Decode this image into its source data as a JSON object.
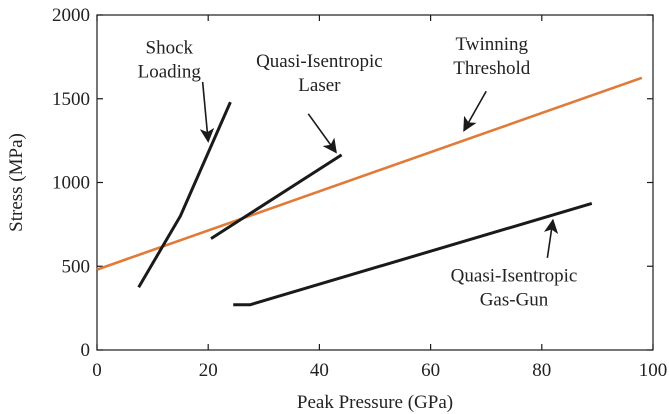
{
  "chart_data": {
    "type": "line",
    "xlabel": "Peak Pressure (GPa)",
    "ylabel": "Stress (MPa)",
    "xlim": [
      0,
      100
    ],
    "ylim": [
      0,
      2000
    ],
    "xticks": [
      0,
      20,
      40,
      60,
      80,
      100
    ],
    "yticks": [
      0,
      500,
      1000,
      1500,
      2000
    ],
    "grid": false,
    "series": [
      {
        "id": "twinning",
        "color": "#E07B39",
        "points": [
          [
            0,
            480
          ],
          [
            98,
            1625
          ]
        ]
      },
      {
        "id": "shock",
        "color": "#1a1a1a",
        "points": [
          [
            7.5,
            375
          ],
          [
            15,
            800
          ],
          [
            24,
            1480
          ]
        ]
      },
      {
        "id": "laser",
        "color": "#1a1a1a",
        "points": [
          [
            20.5,
            665
          ],
          [
            44,
            1165
          ]
        ]
      },
      {
        "id": "gasgun",
        "color": "#1a1a1a",
        "points": [
          [
            24.5,
            270
          ],
          [
            27.5,
            270
          ],
          [
            89,
            875
          ]
        ]
      }
    ],
    "annotations": [
      {
        "id": "shock-label",
        "lines": [
          "Shock",
          "Loading"
        ],
        "text_pos": [
          13,
          1770
        ],
        "arrow_from": [
          19,
          1600
        ],
        "arrow_to": [
          20,
          1245
        ]
      },
      {
        "id": "laser-label",
        "lines": [
          "Quasi-Isentropic",
          "Laser"
        ],
        "text_pos": [
          40,
          1690
        ],
        "arrow_from": [
          38,
          1410
        ],
        "arrow_to": [
          43,
          1180
        ]
      },
      {
        "id": "twinning-label",
        "lines": [
          "Twinning",
          "Threshold"
        ],
        "text_pos": [
          71,
          1790
        ],
        "arrow_from": [
          70,
          1545
        ],
        "arrow_to": [
          66,
          1310
        ]
      },
      {
        "id": "gasgun-label",
        "lines": [
          "Quasi-Isentropic",
          "Gas-Gun"
        ],
        "text_pos": [
          75,
          410
        ],
        "arrow_from": [
          81,
          550
        ],
        "arrow_to": [
          82,
          775
        ]
      }
    ]
  }
}
